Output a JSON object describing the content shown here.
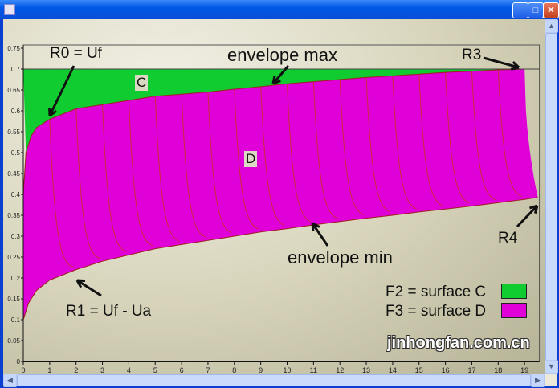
{
  "window": {
    "minimize": "_",
    "maximize": "□",
    "close": "✕"
  },
  "colors": {
    "surface_c": "#10cc30",
    "surface_d": "#e000d8",
    "cycle_line": "#cc2a40"
  },
  "annotations": {
    "r0": "R0 = Uf",
    "env_max": "envelope max",
    "r3": "R3",
    "c": "C",
    "d": "D",
    "env_min": "envelope min",
    "r4": "R4",
    "r1": "R1 = Uf - Ua"
  },
  "legend": [
    {
      "label": "F2 = surface C",
      "color": "#10cc30"
    },
    {
      "label": "F3 = surface D",
      "color": "#e000d8"
    }
  ],
  "watermark": "jinhongfan.com.cn",
  "chart_data": {
    "type": "area",
    "xlim": [
      0,
      19.5
    ],
    "ylim": [
      0,
      0.75
    ],
    "x_ticks": [
      0,
      1,
      2,
      3,
      4,
      5,
      6,
      7,
      8,
      9,
      10,
      11,
      12,
      13,
      14,
      15,
      16,
      17,
      18,
      19
    ],
    "y_ticks": [
      "0",
      "0.05",
      "0.1",
      "0.15",
      "0.2",
      "0.25",
      "0.3",
      "0.35",
      "0.4",
      "0.45",
      "0.5",
      "0.55",
      "0.6",
      "0.65",
      "0.7",
      "0.75"
    ],
    "reference_line": 0.7,
    "series": [
      {
        "name": "envelope max",
        "x": [
          0,
          0.1,
          0.3,
          0.5,
          1,
          2,
          3,
          4,
          5,
          6,
          7,
          8,
          9,
          10,
          11,
          12,
          13,
          14,
          15,
          16,
          17,
          18,
          19
        ],
        "y": [
          0.4,
          0.5,
          0.54,
          0.56,
          0.58,
          0.605,
          0.615,
          0.625,
          0.635,
          0.64,
          0.645,
          0.652,
          0.658,
          0.665,
          0.67,
          0.675,
          0.68,
          0.684,
          0.688,
          0.692,
          0.695,
          0.698,
          0.7
        ]
      },
      {
        "name": "envelope min",
        "x": [
          0,
          0.2,
          0.5,
          1,
          2,
          3,
          4,
          5,
          6,
          7,
          8,
          9,
          10,
          11,
          12,
          13,
          14,
          15,
          16,
          17,
          18,
          19,
          19.5
        ],
        "y": [
          0.1,
          0.14,
          0.17,
          0.195,
          0.22,
          0.24,
          0.255,
          0.27,
          0.28,
          0.29,
          0.3,
          0.31,
          0.318,
          0.327,
          0.335,
          0.343,
          0.35,
          0.358,
          0.365,
          0.372,
          0.38,
          0.388,
          0.393
        ]
      }
    ],
    "cycle_starts": [
      1,
      2,
      3,
      4,
      5,
      6,
      7,
      8,
      9,
      10,
      11,
      12,
      13,
      14,
      15,
      16,
      17,
      18,
      19
    ]
  }
}
